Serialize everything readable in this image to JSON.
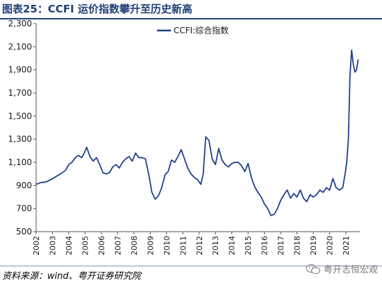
{
  "header": {
    "title": "图表25：CCFI 运价指数攀升至历史新高"
  },
  "footer": {
    "source": "资料来源：wind、粤开证券研究院",
    "brand": "粤开志恒宏观",
    "brand_icon": "wechat-icon"
  },
  "colors": {
    "line": "#1f3f8c",
    "axis": "#555555",
    "text": "#1a1a1a"
  },
  "chart_data": {
    "type": "line",
    "title": "",
    "xlabel": "",
    "ylabel": "",
    "ylim": [
      500,
      2300
    ],
    "yticks": [
      500,
      700,
      900,
      1100,
      1300,
      1500,
      1700,
      1900,
      2100,
      2300
    ],
    "ytick_labels": [
      "500",
      "700",
      "900",
      "1,100",
      "1,300",
      "1,500",
      "1,700",
      "1,900",
      "2,100",
      "2,300"
    ],
    "xlim": [
      2002.0,
      2021.85
    ],
    "xticks": [
      2002,
      2003,
      2004,
      2005,
      2006,
      2007,
      2008,
      2009,
      2010,
      2011,
      2012,
      2013,
      2014,
      2015,
      2016,
      2017,
      2018,
      2019,
      2020,
      2021
    ],
    "xtick_labels": [
      "2002",
      "2003",
      "2004",
      "2005",
      "2006",
      "2007",
      "2008",
      "2009",
      "2010",
      "2011",
      "2012",
      "2013",
      "2014",
      "2015",
      "2016",
      "2017",
      "2018",
      "2019",
      "2020",
      "2021"
    ],
    "legend": {
      "position": "top-center"
    },
    "grid": false,
    "series": [
      {
        "name": "CCFI:综合指数",
        "x": [
          2002.0,
          2002.3,
          2002.6,
          2002.9,
          2003.2,
          2003.5,
          2003.8,
          2004.0,
          2004.2,
          2004.4,
          2004.6,
          2004.8,
          2004.95,
          2005.1,
          2005.3,
          2005.5,
          2005.7,
          2005.9,
          2006.1,
          2006.3,
          2006.5,
          2006.7,
          2006.9,
          2007.1,
          2007.3,
          2007.5,
          2007.7,
          2007.9,
          2008.1,
          2008.3,
          2008.5,
          2008.7,
          2008.9,
          2009.1,
          2009.3,
          2009.5,
          2009.7,
          2009.9,
          2010.1,
          2010.3,
          2010.5,
          2010.7,
          2010.9,
          2011.1,
          2011.3,
          2011.5,
          2011.7,
          2011.9,
          2012.1,
          2012.25,
          2012.4,
          2012.6,
          2012.8,
          2013.0,
          2013.2,
          2013.4,
          2013.6,
          2013.8,
          2014.0,
          2014.2,
          2014.4,
          2014.6,
          2014.8,
          2015.0,
          2015.2,
          2015.4,
          2015.6,
          2015.8,
          2016.0,
          2016.2,
          2016.4,
          2016.6,
          2016.8,
          2017.0,
          2017.2,
          2017.4,
          2017.6,
          2017.8,
          2018.0,
          2018.2,
          2018.4,
          2018.6,
          2018.8,
          2019.0,
          2019.2,
          2019.4,
          2019.6,
          2019.8,
          2020.0,
          2020.2,
          2020.4,
          2020.6,
          2020.8,
          2020.95,
          2021.05,
          2021.15,
          2021.25,
          2021.35,
          2021.45,
          2021.55,
          2021.65,
          2021.75
        ],
        "values": [
          910,
          925,
          930,
          950,
          975,
          1000,
          1030,
          1080,
          1100,
          1140,
          1160,
          1140,
          1180,
          1230,
          1150,
          1110,
          1140,
          1080,
          1010,
          1000,
          1010,
          1060,
          1080,
          1050,
          1100,
          1130,
          1150,
          1110,
          1180,
          1140,
          1140,
          1130,
          1000,
          840,
          780,
          810,
          880,
          990,
          1020,
          1120,
          1100,
          1150,
          1210,
          1130,
          1050,
          1000,
          970,
          950,
          910,
          1000,
          1320,
          1290,
          1130,
          1080,
          1220,
          1120,
          1080,
          1060,
          1090,
          1100,
          1100,
          1070,
          1020,
          1090,
          970,
          890,
          840,
          800,
          740,
          700,
          640,
          650,
          700,
          770,
          820,
          860,
          790,
          830,
          800,
          860,
          790,
          760,
          820,
          800,
          820,
          860,
          840,
          880,
          860,
          960,
          880,
          860,
          880,
          1000,
          1100,
          1300,
          1850,
          2070,
          1950,
          1880,
          1900,
          1990
        ]
      }
    ]
  }
}
